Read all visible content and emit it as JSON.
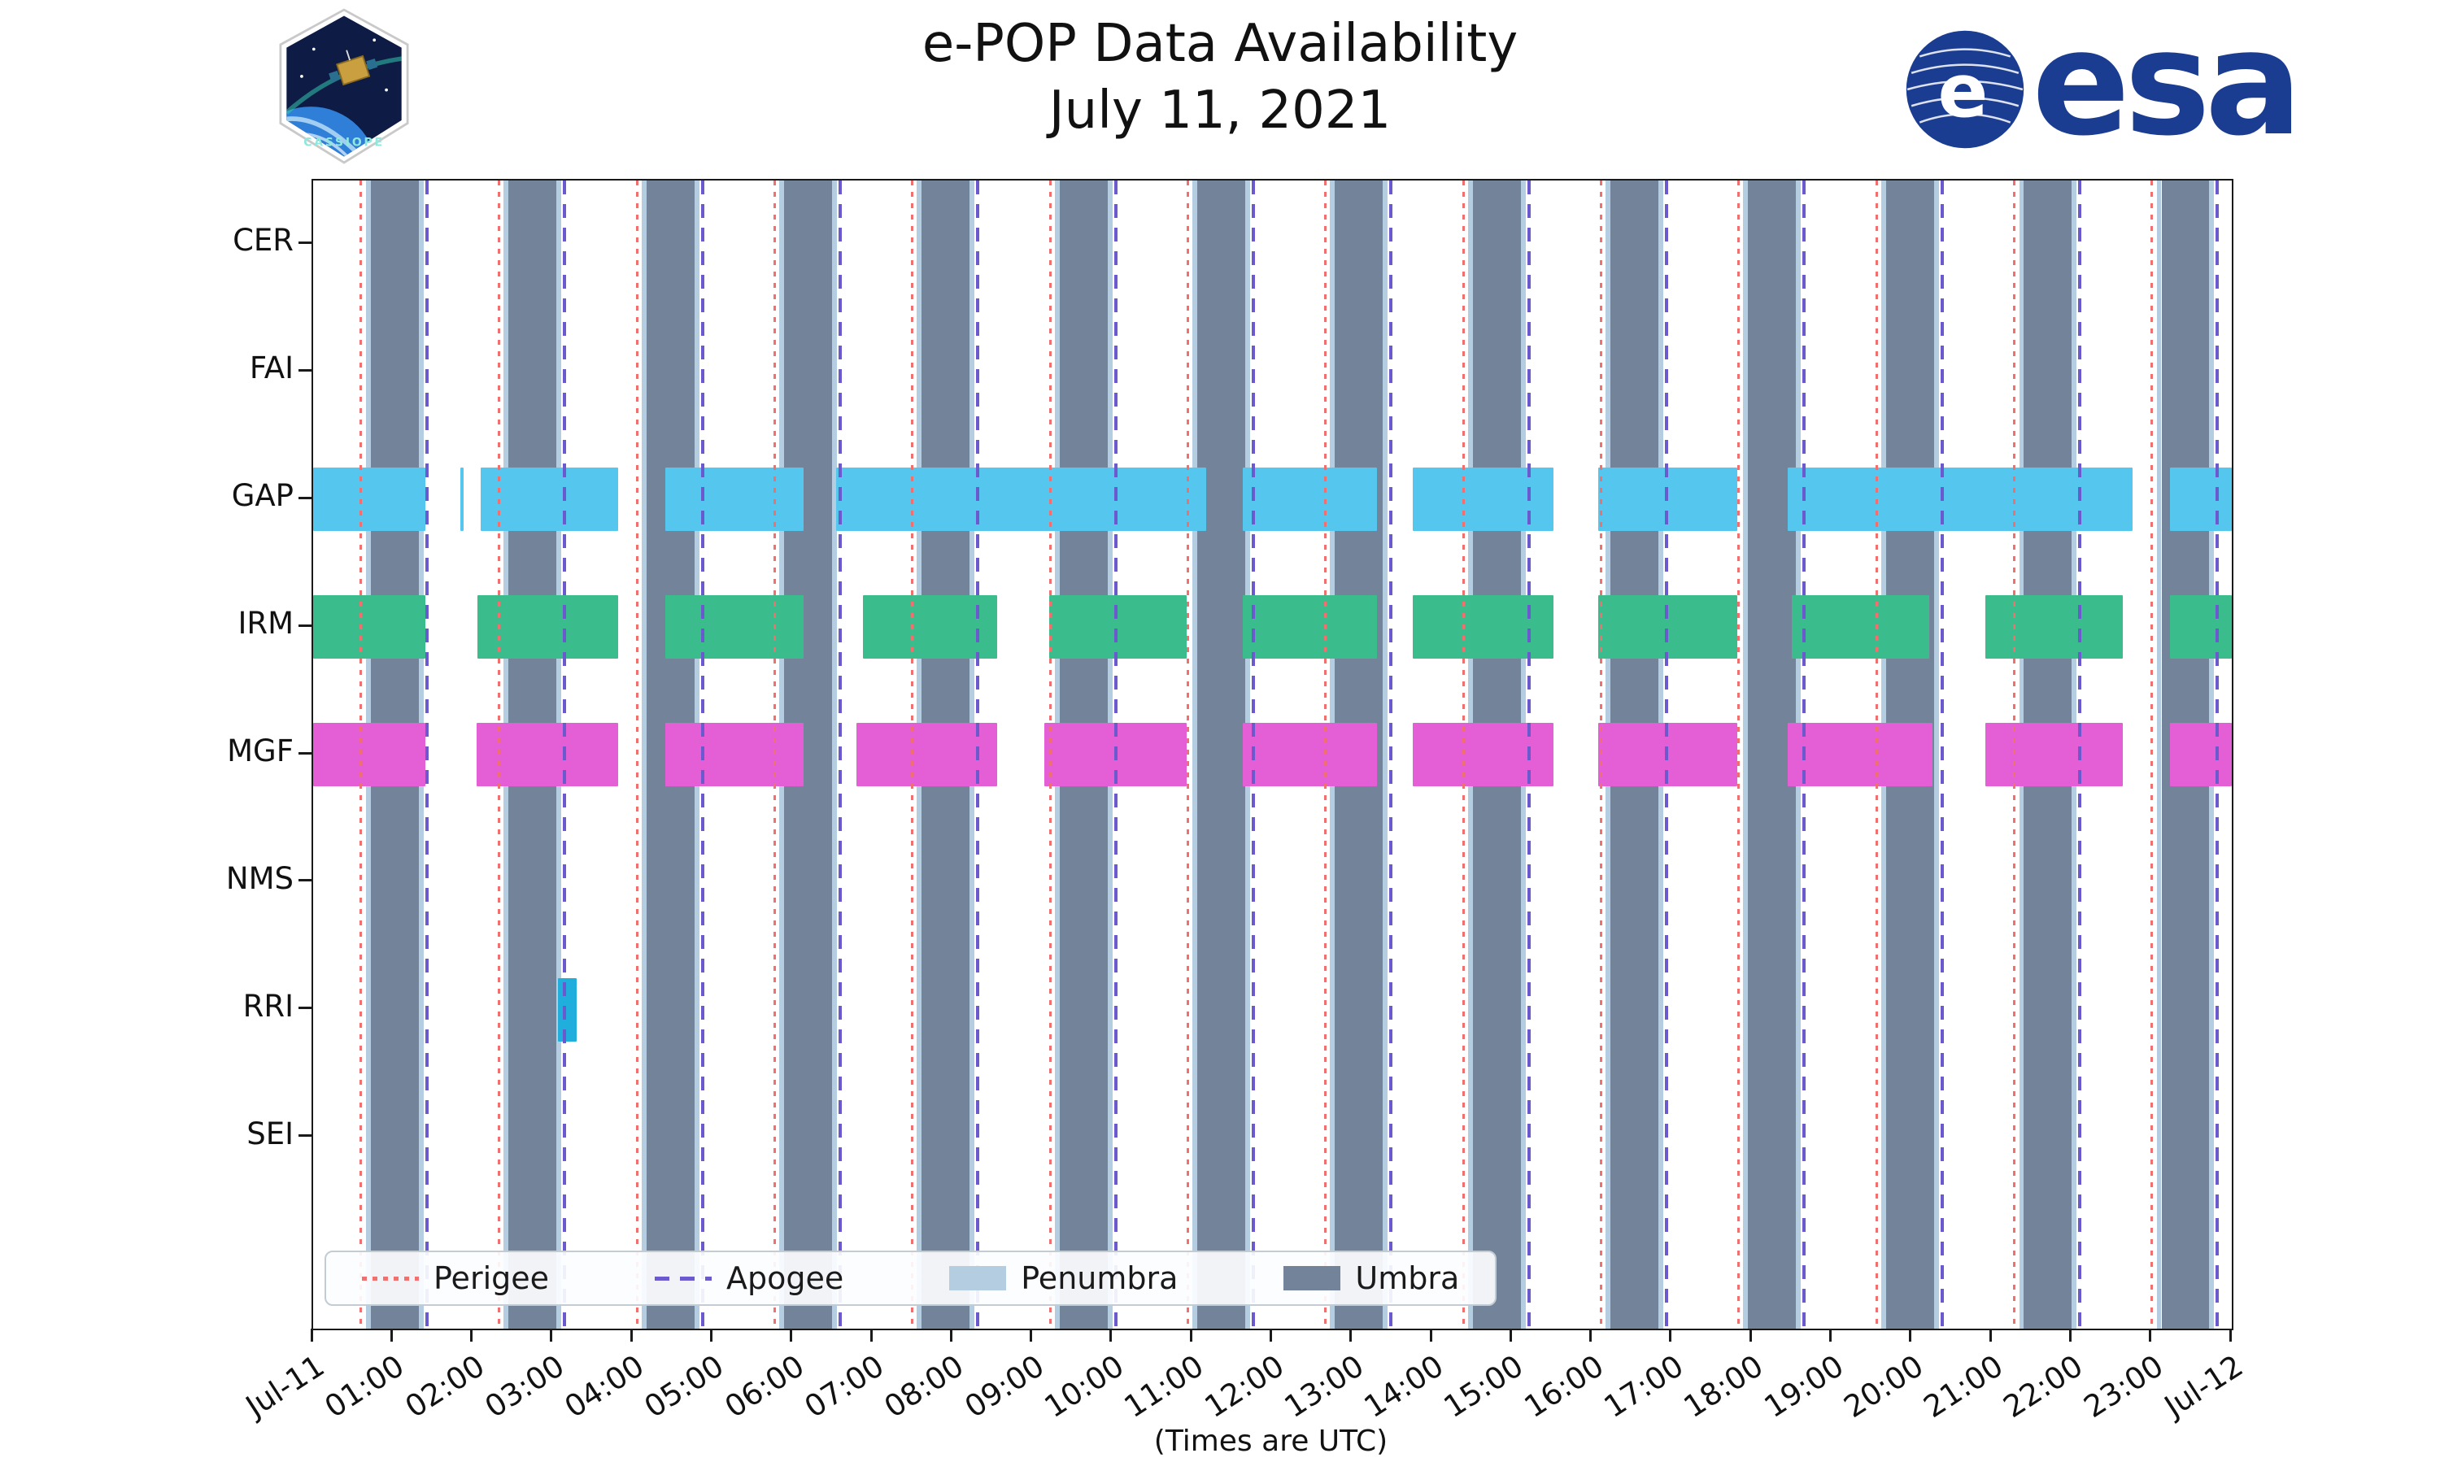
{
  "title": {
    "line1": "e-POP Data Availability",
    "line2": "July 11, 2021"
  },
  "branding": {
    "cassiope_label": "CASSIOPE",
    "esa_wordmark": "esa",
    "esa_emblem_letter": "e"
  },
  "axis": {
    "xlabel": "(Times are UTC)",
    "x_ticks": [
      "Jul-11",
      "01:00",
      "02:00",
      "03:00",
      "04:00",
      "05:00",
      "06:00",
      "07:00",
      "08:00",
      "09:00",
      "10:00",
      "11:00",
      "12:00",
      "13:00",
      "14:00",
      "15:00",
      "16:00",
      "17:00",
      "18:00",
      "19:00",
      "20:00",
      "21:00",
      "22:00",
      "23:00",
      "Jul-12"
    ],
    "y_labels": [
      "CER",
      "FAI",
      "GAP",
      "IRM",
      "MGF",
      "NMS",
      "RRI",
      "SEI"
    ]
  },
  "legend": [
    {
      "label": "Perigee",
      "marker": "dotted",
      "color": "#f07070"
    },
    {
      "label": "Apogee",
      "marker": "dashed",
      "color": "#6a5acd"
    },
    {
      "label": "Penumbra",
      "marker": "patch",
      "color": "#b4cde0"
    },
    {
      "label": "Umbra",
      "marker": "patch",
      "color": "#73849a"
    }
  ],
  "chart_data": {
    "type": "timeline-availability",
    "title": "e-POP Data Availability",
    "subtitle": "July 11, 2021",
    "xlabel": "(Times are UTC)",
    "time_range_hours": [
      0,
      24
    ],
    "orbital_period_hours": 1.7233,
    "colors": {
      "umbra": "#73849a",
      "penumbra": "#b4cde0",
      "perigee": "#f07070",
      "apogee": "#6a5acd"
    },
    "perigee_hours": [
      0.6,
      2.32,
      4.05,
      5.77,
      7.49,
      9.22,
      10.94,
      12.66,
      14.39,
      16.11,
      17.83,
      19.56,
      21.28,
      23.0
    ],
    "apogee_hours": [
      1.42,
      3.14,
      4.87,
      6.59,
      8.31,
      10.04,
      11.76,
      13.48,
      15.21,
      16.93,
      18.65,
      20.38,
      22.1,
      23.82
    ],
    "umbra_intervals_hours": [
      [
        0.72,
        1.32
      ],
      [
        2.44,
        3.04
      ],
      [
        4.17,
        4.77
      ],
      [
        5.89,
        6.49
      ],
      [
        7.61,
        8.21
      ],
      [
        9.34,
        9.94
      ],
      [
        11.06,
        11.66
      ],
      [
        12.78,
        13.38
      ],
      [
        14.51,
        15.11
      ],
      [
        16.23,
        16.83
      ],
      [
        17.95,
        18.55
      ],
      [
        19.68,
        20.28
      ],
      [
        21.4,
        22.0
      ],
      [
        23.12,
        23.72
      ]
    ],
    "penumbra_margin_hours": 0.06,
    "instruments": [
      {
        "name": "CER",
        "color": "#55c7ee",
        "intervals": []
      },
      {
        "name": "FAI",
        "color": "#55c7ee",
        "intervals": []
      },
      {
        "name": "GAP",
        "color": "#55c7ee",
        "intervals": [
          [
            0.0,
            1.4
          ],
          [
            1.84,
            1.88
          ],
          [
            2.1,
            3.82
          ],
          [
            4.41,
            6.13
          ],
          [
            6.54,
            11.17
          ],
          [
            11.63,
            13.31
          ],
          [
            13.76,
            15.52
          ],
          [
            16.07,
            17.81
          ],
          [
            18.45,
            22.76
          ],
          [
            23.23,
            24.0
          ]
        ]
      },
      {
        "name": "IRM",
        "color": "#3bbc8d",
        "intervals": [
          [
            0.0,
            1.4
          ],
          [
            2.06,
            3.82
          ],
          [
            4.41,
            6.13
          ],
          [
            6.88,
            8.56
          ],
          [
            9.21,
            10.93
          ],
          [
            11.63,
            13.31
          ],
          [
            13.76,
            15.52
          ],
          [
            16.07,
            17.81
          ],
          [
            18.5,
            20.22
          ],
          [
            20.92,
            22.64
          ],
          [
            23.23,
            24.0
          ]
        ]
      },
      {
        "name": "MGF",
        "color": "#e45fd5",
        "intervals": [
          [
            0.0,
            1.4
          ],
          [
            2.04,
            3.82
          ],
          [
            4.41,
            6.13
          ],
          [
            6.8,
            8.56
          ],
          [
            9.15,
            10.93
          ],
          [
            11.63,
            13.31
          ],
          [
            13.76,
            15.52
          ],
          [
            16.07,
            17.81
          ],
          [
            18.45,
            20.26
          ],
          [
            20.92,
            22.64
          ],
          [
            23.23,
            24.0
          ]
        ]
      },
      {
        "name": "NMS",
        "color": "#55c7ee",
        "intervals": []
      },
      {
        "name": "RRI",
        "color": "#20aedc",
        "intervals": [
          [
            3.06,
            3.3
          ]
        ]
      },
      {
        "name": "SEI",
        "color": "#55c7ee",
        "intervals": []
      }
    ]
  }
}
